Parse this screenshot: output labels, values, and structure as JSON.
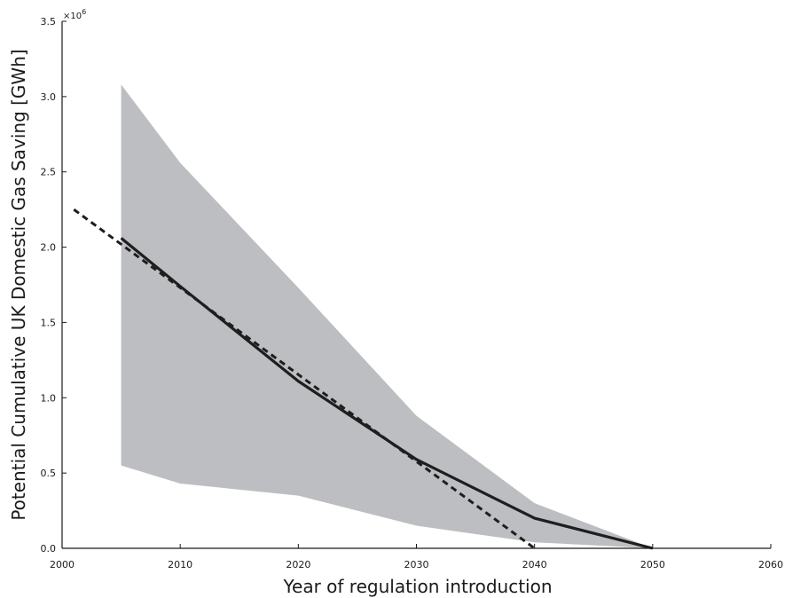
{
  "chart_data": {
    "type": "line",
    "xlabel": "Year of regulation introduction",
    "ylabel": "Potential Cumulative UK Domestic Gas Saving [GWh]",
    "y_multiplier_label": "×10",
    "y_multiplier_exponent": "6",
    "xlim": [
      2000,
      2060
    ],
    "ylim": [
      0,
      3.5
    ],
    "x_ticks": [
      2000,
      2010,
      2020,
      2030,
      2040,
      2050,
      2060
    ],
    "x_tick_labels": [
      "2000",
      "2010",
      "2020",
      "2030",
      "2040",
      "2050",
      "2060"
    ],
    "y_ticks": [
      0,
      0.5,
      1.0,
      1.5,
      2.0,
      2.5,
      3.0,
      3.5
    ],
    "y_tick_labels": [
      "0.0",
      "0.5",
      "1.0",
      "1.5",
      "2.0",
      "2.5",
      "3.0",
      "3.5"
    ],
    "grid": false,
    "band": {
      "x": [
        2005,
        2010,
        2020,
        2030,
        2040,
        2050
      ],
      "upper": [
        3.08,
        2.56,
        1.73,
        0.88,
        0.3,
        0.0
      ],
      "lower": [
        0.55,
        0.43,
        0.35,
        0.15,
        0.04,
        0.0
      ],
      "color": "#bdbec2"
    },
    "series": [
      {
        "style": "solid",
        "color": "#1e1e1e",
        "x": [
          2005,
          2010,
          2020,
          2030,
          2040,
          2050
        ],
        "values": [
          2.06,
          1.74,
          1.11,
          0.59,
          0.2,
          0.0
        ]
      },
      {
        "style": "dashed",
        "color": "#1e1e1e",
        "x": [
          2001,
          2040
        ],
        "values": [
          2.25,
          0.0
        ]
      }
    ]
  }
}
